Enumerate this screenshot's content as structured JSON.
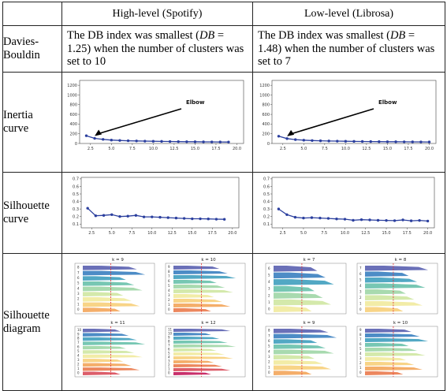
{
  "table": {
    "header": [
      "",
      "High-level (Spotify)",
      "Low-level (Librosa)"
    ],
    "rows": [
      {
        "label": "Davies-\nBouldin",
        "high": {
          "pre": "The DB index was smallest (",
          "var": "DB",
          "post": " = 1.25) when the number of clusters was set to 10"
        },
        "low": {
          "pre": "The DB index was smallest (",
          "var": "DB",
          "post": " = 1.48) when the number of clusters was set to 7"
        }
      },
      {
        "label": "Inertia\ncurve"
      },
      {
        "label": "Silhouette\ncurve"
      },
      {
        "label": "Silhouette\ndiagram"
      }
    ]
  },
  "elbow_label": "Elbow",
  "chart_data": [
    {
      "type": "line",
      "id": "inertia-high",
      "x": [
        2,
        3,
        4,
        5,
        6,
        7,
        8,
        9,
        10,
        11,
        12,
        13,
        14,
        15,
        16,
        17,
        18,
        19
      ],
      "y": [
        160,
        105,
        85,
        70,
        62,
        56,
        52,
        48,
        45,
        43,
        40,
        38,
        36,
        35,
        33,
        32,
        31,
        30
      ],
      "ylim": [
        0,
        1300
      ],
      "yticks": [
        0,
        200,
        400,
        600,
        800,
        1000,
        1200
      ],
      "xticks": [
        "2.5",
        "5.0",
        "7.5",
        "10.0",
        "12.5",
        "15.0",
        "17.5",
        "20.0"
      ],
      "annotation": "Elbow"
    },
    {
      "type": "line",
      "id": "inertia-low",
      "x": [
        2,
        3,
        4,
        5,
        6,
        7,
        8,
        9,
        10,
        11,
        12,
        13,
        14,
        15,
        16,
        17,
        18,
        19,
        20
      ],
      "y": [
        150,
        100,
        80,
        68,
        60,
        55,
        51,
        48,
        45,
        43,
        41,
        39,
        37,
        36,
        35,
        34,
        33,
        32,
        31
      ],
      "ylim": [
        0,
        1300
      ],
      "yticks": [
        0,
        200,
        400,
        600,
        800,
        1000,
        1200
      ],
      "xticks": [
        "2.5",
        "5.0",
        "7.5",
        "10.0",
        "12.5",
        "15.0",
        "17.5",
        "20.0"
      ],
      "annotation": "Elbow"
    },
    {
      "type": "line",
      "id": "sil-high",
      "x": [
        2,
        3,
        4,
        5,
        6,
        7,
        8,
        9,
        10,
        11,
        12,
        13,
        14,
        15,
        16,
        17,
        18,
        19
      ],
      "y": [
        0.31,
        0.21,
        0.215,
        0.225,
        0.2,
        0.205,
        0.215,
        0.195,
        0.195,
        0.19,
        0.185,
        0.18,
        0.175,
        0.17,
        0.17,
        0.168,
        0.165,
        0.163
      ],
      "ylim": [
        0.05,
        0.72
      ],
      "yticks": [
        "0.1",
        "0.2",
        "0.3",
        "0.4",
        "0.5",
        "0.6",
        "0.7"
      ],
      "xticks": [
        "2.5",
        "5.0",
        "7.5",
        "10.0",
        "12.5",
        "15.0",
        "17.5",
        "20.0"
      ]
    },
    {
      "type": "line",
      "id": "sil-low",
      "x": [
        2,
        3,
        4,
        5,
        6,
        7,
        8,
        9,
        10,
        11,
        12,
        13,
        14,
        15,
        16,
        17,
        18,
        19,
        20
      ],
      "y": [
        0.3,
        0.225,
        0.19,
        0.18,
        0.185,
        0.18,
        0.175,
        0.168,
        0.165,
        0.15,
        0.158,
        0.155,
        0.15,
        0.148,
        0.145,
        0.155,
        0.143,
        0.148,
        0.14
      ],
      "ylim": [
        0.05,
        0.72
      ],
      "yticks": [
        "0.1",
        "0.2",
        "0.3",
        "0.4",
        "0.5",
        "0.6",
        "0.7"
      ],
      "xticks": [
        "2.5",
        "5.0",
        "7.5",
        "10.0",
        "12.5",
        "15.0",
        "17.5",
        "20.0"
      ]
    }
  ],
  "diagrams": {
    "high": [
      {
        "title": "k = 9",
        "k": 9
      },
      {
        "title": "k = 10",
        "k": 10
      },
      {
        "title": "k = 11",
        "k": 11
      },
      {
        "title": "k = 12",
        "k": 12
      }
    ],
    "low": [
      {
        "title": "k = 7",
        "k": 7
      },
      {
        "title": "k = 8",
        "k": 8
      },
      {
        "title": "k = 9",
        "k": 9
      },
      {
        "title": "k = 10",
        "k": 10
      }
    ]
  },
  "colors": {
    "line": "#2b3f9e",
    "grid": "#cccccc",
    "threshold": "#e03030"
  }
}
